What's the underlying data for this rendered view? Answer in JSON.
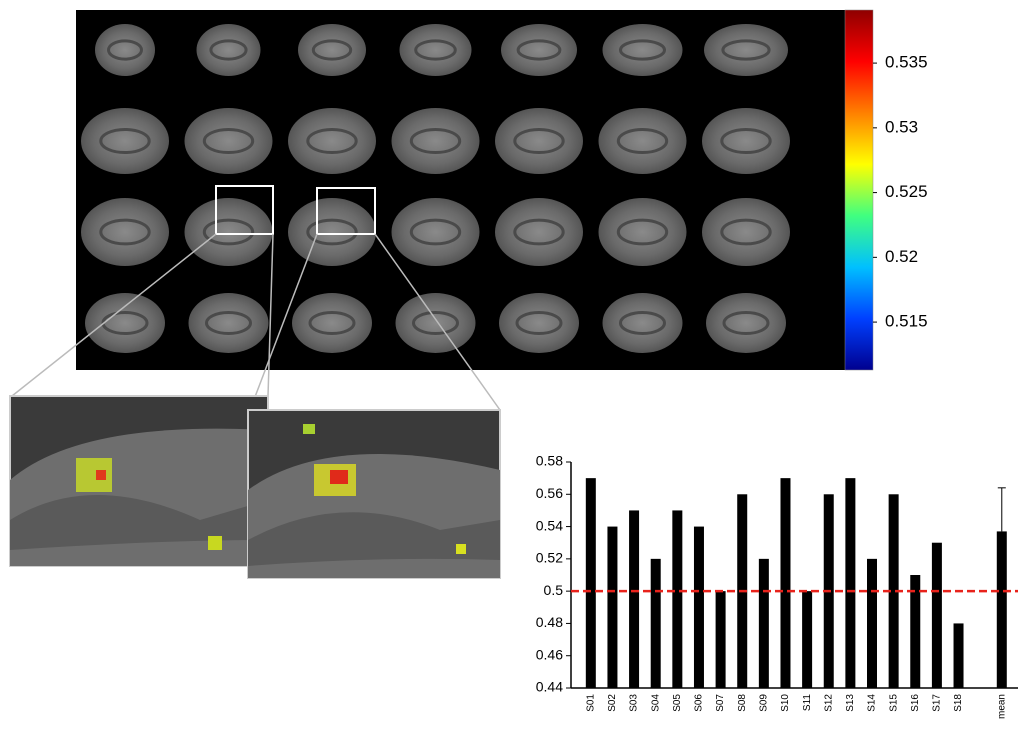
{
  "chart_data": [
    {
      "type": "colorbar",
      "ylim": [
        0.5113,
        0.5391
      ],
      "yticks": [
        0.515,
        0.52,
        0.525,
        0.53,
        0.535
      ],
      "colors": [
        "#00008f",
        "#0040ff",
        "#00c0ff",
        "#40ff80",
        "#ffff00",
        "#ff8000",
        "#ff0000",
        "#8f0000"
      ]
    },
    {
      "type": "bar",
      "categories": [
        "S01",
        "S02",
        "S03",
        "S04",
        "S05",
        "S06",
        "S07",
        "S08",
        "S09",
        "S10",
        "S11",
        "S12",
        "S13",
        "S14",
        "S15",
        "S16",
        "S17",
        "S18",
        null,
        "mean"
      ],
      "values": [
        0.57,
        0.54,
        0.55,
        0.52,
        0.55,
        0.54,
        0.5,
        0.56,
        0.52,
        0.57,
        0.5,
        0.56,
        0.57,
        0.52,
        0.56,
        0.51,
        0.53,
        0.48,
        null,
        0.537
      ],
      "errors": [
        null,
        null,
        null,
        null,
        null,
        null,
        null,
        null,
        null,
        null,
        null,
        null,
        null,
        null,
        null,
        null,
        null,
        null,
        null,
        0.027
      ],
      "color": "#000000",
      "ylim": [
        0.44,
        0.58
      ],
      "yticks": [
        0.44,
        0.46,
        0.48,
        0.5,
        0.52,
        0.54,
        0.56,
        0.58
      ],
      "reference_line": {
        "value": 0.5,
        "color": "#e8221b"
      }
    }
  ]
}
